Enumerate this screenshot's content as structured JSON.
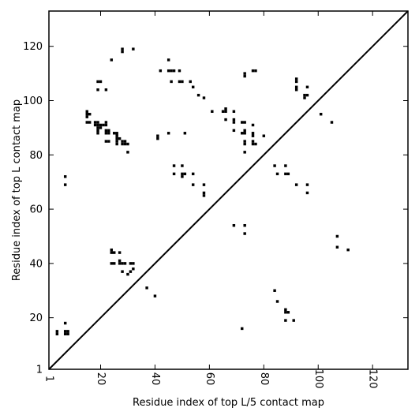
{
  "chart_data": {
    "type": "scatter",
    "xlabel": "Residue index of top L/5 contact map",
    "ylabel": "Residue index of top L contact map",
    "xlim": [
      1,
      133
    ],
    "ylim": [
      1,
      133
    ],
    "grid": false,
    "diagonal": true,
    "x_ticks": [
      1,
      20,
      40,
      60,
      80,
      100,
      120
    ],
    "y_ticks": [
      1,
      20,
      40,
      60,
      80,
      100,
      120
    ],
    "upper_triangle_points": [
      [
        7,
        72
      ],
      [
        7,
        69
      ],
      [
        15,
        96
      ],
      [
        15,
        95
      ],
      [
        16,
        95
      ],
      [
        15,
        94
      ],
      [
        15,
        92
      ],
      [
        16,
        92
      ],
      [
        18,
        92
      ],
      [
        19,
        92
      ],
      [
        18,
        91
      ],
      [
        19,
        91
      ],
      [
        20,
        91
      ],
      [
        19,
        90
      ],
      [
        20,
        90
      ],
      [
        19,
        89
      ],
      [
        19,
        88
      ],
      [
        21,
        91
      ],
      [
        22,
        92
      ],
      [
        22,
        91
      ],
      [
        19,
        107
      ],
      [
        20,
        107
      ],
      [
        19,
        104
      ],
      [
        22,
        104
      ],
      [
        24,
        115
      ],
      [
        22,
        89
      ],
      [
        23,
        89
      ],
      [
        22,
        88
      ],
      [
        23,
        88
      ],
      [
        25,
        88
      ],
      [
        26,
        88
      ],
      [
        26,
        87
      ],
      [
        26,
        86
      ],
      [
        26,
        85
      ],
      [
        26,
        84
      ],
      [
        27,
        86
      ],
      [
        28,
        85
      ],
      [
        29,
        85
      ],
      [
        28,
        84
      ],
      [
        29,
        84
      ],
      [
        30,
        84
      ],
      [
        22,
        85
      ],
      [
        23,
        85
      ],
      [
        30,
        81
      ],
      [
        28,
        119
      ],
      [
        28,
        118
      ],
      [
        32,
        119
      ],
      [
        41,
        87
      ],
      [
        41,
        86
      ],
      [
        42,
        111
      ],
      [
        45,
        115
      ],
      [
        45,
        111
      ],
      [
        46,
        111
      ],
      [
        47,
        111
      ],
      [
        46,
        107
      ],
      [
        49,
        111
      ],
      [
        49,
        107
      ],
      [
        50,
        107
      ],
      [
        45,
        88
      ],
      [
        47,
        76
      ],
      [
        47,
        73
      ],
      [
        50,
        76
      ],
      [
        50,
        73
      ],
      [
        51,
        73
      ],
      [
        50,
        72
      ],
      [
        51,
        88
      ],
      [
        53,
        107
      ],
      [
        54,
        105
      ],
      [
        54,
        73
      ],
      [
        54,
        69
      ],
      [
        56,
        102
      ],
      [
        58,
        101
      ],
      [
        58,
        69
      ],
      [
        58,
        66
      ],
      [
        58,
        65
      ],
      [
        61,
        96
      ],
      [
        65,
        96
      ],
      [
        66,
        96
      ],
      [
        66,
        97
      ],
      [
        66,
        93
      ],
      [
        69,
        96
      ],
      [
        69,
        93
      ],
      [
        69,
        92
      ],
      [
        69,
        89
      ],
      [
        72,
        92
      ],
      [
        73,
        92
      ],
      [
        73,
        110
      ],
      [
        73,
        109
      ],
      [
        76,
        111
      ],
      [
        77,
        111
      ],
      [
        72,
        88
      ],
      [
        73,
        89
      ],
      [
        73,
        88
      ],
      [
        73,
        85
      ],
      [
        73,
        84
      ],
      [
        73,
        81
      ],
      [
        76,
        91
      ],
      [
        76,
        88
      ],
      [
        76,
        87
      ],
      [
        76,
        85
      ],
      [
        76,
        84
      ],
      [
        77,
        84
      ],
      [
        80,
        87
      ]
    ],
    "lower_triangle_points": [
      [
        4,
        15
      ],
      [
        4,
        14
      ],
      [
        7,
        18
      ],
      [
        7,
        15
      ],
      [
        8,
        15
      ],
      [
        7,
        14
      ],
      [
        8,
        14
      ],
      [
        24,
        45
      ],
      [
        24,
        44
      ],
      [
        25,
        44
      ],
      [
        24,
        40
      ],
      [
        25,
        40
      ],
      [
        27,
        44
      ],
      [
        27,
        41
      ],
      [
        28,
        40
      ],
      [
        27,
        40
      ],
      [
        29,
        40
      ],
      [
        28,
        37
      ],
      [
        30,
        36
      ],
      [
        31,
        37
      ],
      [
        31,
        40
      ],
      [
        32,
        40
      ],
      [
        32,
        38
      ],
      [
        37,
        31
      ],
      [
        40,
        28
      ],
      [
        69,
        54
      ],
      [
        73,
        54
      ],
      [
        73,
        51
      ],
      [
        72,
        16
      ],
      [
        84,
        30
      ],
      [
        85,
        26
      ],
      [
        84,
        76
      ],
      [
        85,
        73
      ],
      [
        88,
        76
      ],
      [
        88,
        73
      ],
      [
        89,
        73
      ],
      [
        88,
        23
      ],
      [
        88,
        22
      ],
      [
        89,
        22
      ],
      [
        88,
        19
      ],
      [
        92,
        108
      ],
      [
        92,
        107
      ],
      [
        92,
        105
      ],
      [
        92,
        104
      ],
      [
        95,
        102
      ],
      [
        96,
        102
      ],
      [
        95,
        101
      ],
      [
        96,
        105
      ],
      [
        92,
        69
      ],
      [
        91,
        19
      ],
      [
        96,
        69
      ],
      [
        96,
        66
      ],
      [
        101,
        95
      ],
      [
        105,
        92
      ],
      [
        107,
        50
      ],
      [
        107,
        46
      ],
      [
        111,
        45
      ]
    ]
  }
}
